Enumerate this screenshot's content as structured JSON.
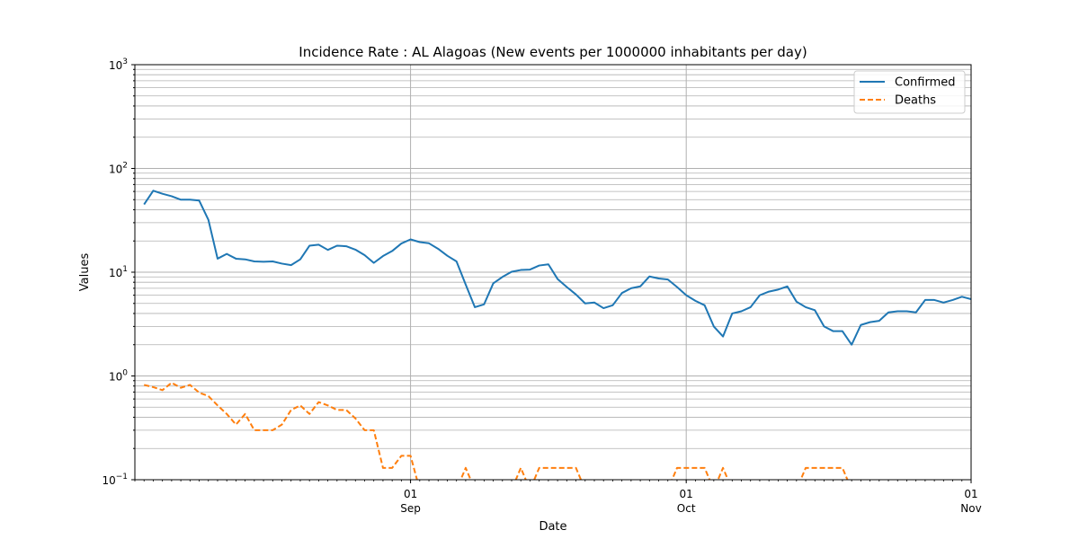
{
  "chart_data": {
    "type": "line",
    "title": "Incidence Rate : AL Alagoas (New events per 1000000 inhabitants per day)",
    "xlabel": "Date",
    "ylabel": "Values",
    "yscale": "log",
    "ylim": [
      0.1,
      1000
    ],
    "y_ticks": [
      {
        "value": 0.1,
        "base": "10",
        "exp": "−1"
      },
      {
        "value": 1,
        "base": "10",
        "exp": "0"
      },
      {
        "value": 10,
        "base": "10",
        "exp": "1"
      },
      {
        "value": 100,
        "base": "10",
        "exp": "2"
      },
      {
        "value": 1000,
        "base": "10",
        "exp": "3"
      }
    ],
    "xlim": [
      "2020-08-02",
      "2020-11-01"
    ],
    "x_ticks": [
      {
        "date": "2020-09-01",
        "day": "01",
        "month": "Sep"
      },
      {
        "date": "2020-10-01",
        "day": "01",
        "month": "Oct"
      },
      {
        "date": "2020-11-01",
        "day": "01",
        "month": "Nov"
      }
    ],
    "grid": true,
    "legend_position": "top-right",
    "series": [
      {
        "name": "Confirmed",
        "color": "#1f77b4",
        "style": "solid",
        "x": [
          "2020-08-03",
          "2020-08-04",
          "2020-08-05",
          "2020-08-06",
          "2020-08-07",
          "2020-08-08",
          "2020-08-09",
          "2020-08-10",
          "2020-08-11",
          "2020-08-12",
          "2020-08-13",
          "2020-08-14",
          "2020-08-15",
          "2020-08-16",
          "2020-08-17",
          "2020-08-18",
          "2020-08-19",
          "2020-08-20",
          "2020-08-21",
          "2020-08-22",
          "2020-08-23",
          "2020-08-24",
          "2020-08-25",
          "2020-08-26",
          "2020-08-27",
          "2020-08-28",
          "2020-08-29",
          "2020-08-30",
          "2020-08-31",
          "2020-09-01",
          "2020-09-02",
          "2020-09-03",
          "2020-09-04",
          "2020-09-05",
          "2020-09-06",
          "2020-09-07",
          "2020-09-08",
          "2020-09-09",
          "2020-09-10",
          "2020-09-11",
          "2020-09-12",
          "2020-09-13",
          "2020-09-14",
          "2020-09-15",
          "2020-09-16",
          "2020-09-17",
          "2020-09-18",
          "2020-09-19",
          "2020-09-20",
          "2020-09-21",
          "2020-09-22",
          "2020-09-23",
          "2020-09-24",
          "2020-09-25",
          "2020-09-26",
          "2020-09-27",
          "2020-09-28",
          "2020-09-29",
          "2020-09-30",
          "2020-10-01",
          "2020-10-02",
          "2020-10-03",
          "2020-10-04",
          "2020-10-05",
          "2020-10-06",
          "2020-10-07",
          "2020-10-08",
          "2020-10-09",
          "2020-10-10",
          "2020-10-11",
          "2020-10-12",
          "2020-10-13",
          "2020-10-14",
          "2020-10-15",
          "2020-10-16",
          "2020-10-17",
          "2020-10-18",
          "2020-10-19",
          "2020-10-20",
          "2020-10-21",
          "2020-10-22",
          "2020-10-23",
          "2020-10-24",
          "2020-10-25",
          "2020-10-26",
          "2020-10-27",
          "2020-10-28",
          "2020-10-29",
          "2020-10-30",
          "2020-10-31",
          "2020-11-01"
        ],
        "values": [
          45,
          61,
          57,
          54,
          50,
          50,
          49,
          32,
          13.5,
          15,
          13.5,
          13.3,
          12.7,
          12.6,
          12.7,
          12.1,
          11.7,
          13.3,
          18,
          18.4,
          16.4,
          18,
          17.8,
          16.5,
          14.6,
          12.3,
          14.3,
          16,
          18.9,
          20.7,
          19.5,
          19,
          16.8,
          14.4,
          12.7,
          7.6,
          4.6,
          4.9,
          7.8,
          9,
          10.1,
          10.5,
          10.6,
          11.6,
          11.9,
          8.6,
          7.2,
          6.1,
          5,
          5.1,
          4.5,
          4.8,
          6.3,
          7,
          7.3,
          9.1,
          8.7,
          8.5,
          7.2,
          6,
          5.3,
          4.8,
          3,
          2.4,
          4,
          4.2,
          4.6,
          6,
          6.5,
          6.8,
          7.3,
          5.2,
          4.6,
          4.3,
          3,
          2.7,
          2.7,
          2,
          3.1,
          3.3,
          3.4,
          4.1,
          4.2,
          4.2,
          4.1,
          5.4,
          5.4,
          5.1,
          5.4,
          5.8,
          5.5
        ]
      },
      {
        "name": "Deaths",
        "color": "#ff7f0e",
        "style": "dashed",
        "x": [
          "2020-08-03",
          "2020-08-04",
          "2020-08-05",
          "2020-08-06",
          "2020-08-07",
          "2020-08-08",
          "2020-08-09",
          "2020-08-10",
          "2020-08-11",
          "2020-08-12",
          "2020-08-13",
          "2020-08-14",
          "2020-08-15",
          "2020-08-16",
          "2020-08-17",
          "2020-08-18",
          "2020-08-19",
          "2020-08-20",
          "2020-08-21",
          "2020-08-22",
          "2020-08-23",
          "2020-08-24",
          "2020-08-25",
          "2020-08-26",
          "2020-08-27",
          "2020-08-28",
          "2020-08-29",
          "2020-08-30",
          "2020-08-31",
          "2020-09-01",
          "2020-09-02",
          "2020-09-03",
          "2020-09-04",
          "2020-09-05",
          "2020-09-06",
          "2020-09-07",
          "2020-09-08",
          "2020-09-09",
          "2020-09-10",
          "2020-09-11",
          "2020-09-12",
          "2020-09-13",
          "2020-09-14",
          "2020-09-15",
          "2020-09-16",
          "2020-09-17",
          "2020-09-18",
          "2020-09-19",
          "2020-09-20",
          "2020-09-21",
          "2020-09-22",
          "2020-09-23",
          "2020-09-24",
          "2020-09-25",
          "2020-09-26",
          "2020-09-27",
          "2020-09-28",
          "2020-09-29",
          "2020-09-30",
          "2020-10-01",
          "2020-10-02",
          "2020-10-03",
          "2020-10-04",
          "2020-10-05",
          "2020-10-06",
          "2020-10-07",
          "2020-10-08",
          "2020-10-09",
          "2020-10-10",
          "2020-10-11",
          "2020-10-12",
          "2020-10-13",
          "2020-10-14",
          "2020-10-15",
          "2020-10-16",
          "2020-10-17",
          "2020-10-18",
          "2020-10-19",
          "2020-10-20",
          "2020-10-21",
          "2020-10-22",
          "2020-10-23",
          "2020-10-24",
          "2020-10-25",
          "2020-10-26",
          "2020-10-27",
          "2020-10-28",
          "2020-10-29",
          "2020-10-30",
          "2020-10-31",
          "2020-11-01"
        ],
        "values": [
          0.82,
          0.78,
          0.73,
          0.86,
          0.77,
          0.82,
          0.69,
          0.64,
          0.52,
          0.43,
          0.34,
          0.43,
          0.3,
          0.3,
          0.3,
          0.34,
          0.47,
          0.52,
          0.43,
          0.56,
          0.52,
          0.47,
          0.47,
          0.39,
          0.3,
          0.3,
          0.13,
          0.13,
          0.17,
          0.17,
          0.08,
          0.08,
          0.08,
          0.08,
          0.08,
          0.13,
          0.08,
          0.08,
          0.08,
          0.08,
          0.08,
          0.13,
          0.08,
          0.13,
          0.13,
          0.13,
          0.13,
          0.13,
          0.08,
          0.08,
          0.08,
          0.08,
          0.08,
          0.08,
          0.08,
          0.08,
          0.08,
          0.08,
          0.13,
          0.13,
          0.13,
          0.13,
          0.08,
          0.13,
          0.08,
          0.08,
          0.08,
          0.08,
          0.08,
          0.08,
          0.08,
          0.08,
          0.13,
          0.13,
          0.13,
          0.13,
          0.13,
          0.08,
          0.08,
          0.08,
          0.08,
          0.08,
          0.08,
          0.08,
          0.08,
          0.08,
          0.08,
          0.08,
          0.08,
          0.08,
          0.08
        ]
      }
    ]
  }
}
